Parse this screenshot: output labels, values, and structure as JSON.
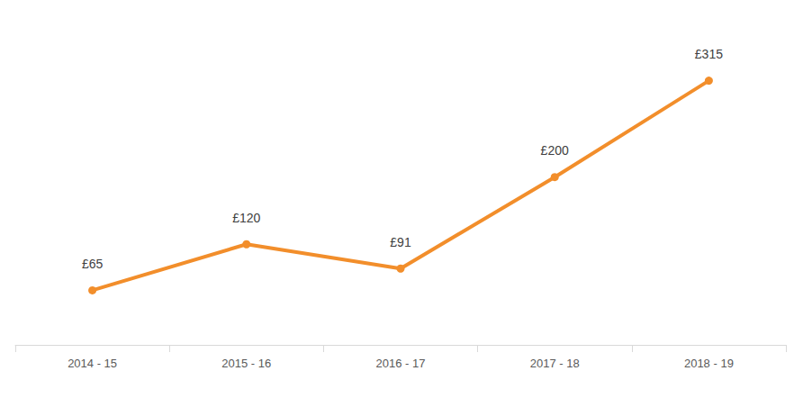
{
  "chart_data": {
    "type": "line",
    "categories": [
      "2014 - 15",
      "2015 - 16",
      "2016 - 17",
      "2017 - 18",
      "2018 - 19"
    ],
    "values": [
      65,
      120,
      91,
      200,
      315
    ],
    "value_labels": [
      "£65",
      "£120",
      "£91",
      "£200",
      "£315"
    ],
    "color": "#f28e2b",
    "marker": "circle",
    "ylim": [
      0,
      350
    ],
    "yticks": [
      0,
      50,
      100,
      150,
      200,
      250,
      300,
      350
    ],
    "grid": false,
    "data_labels": true,
    "tick_labels": "x"
  }
}
